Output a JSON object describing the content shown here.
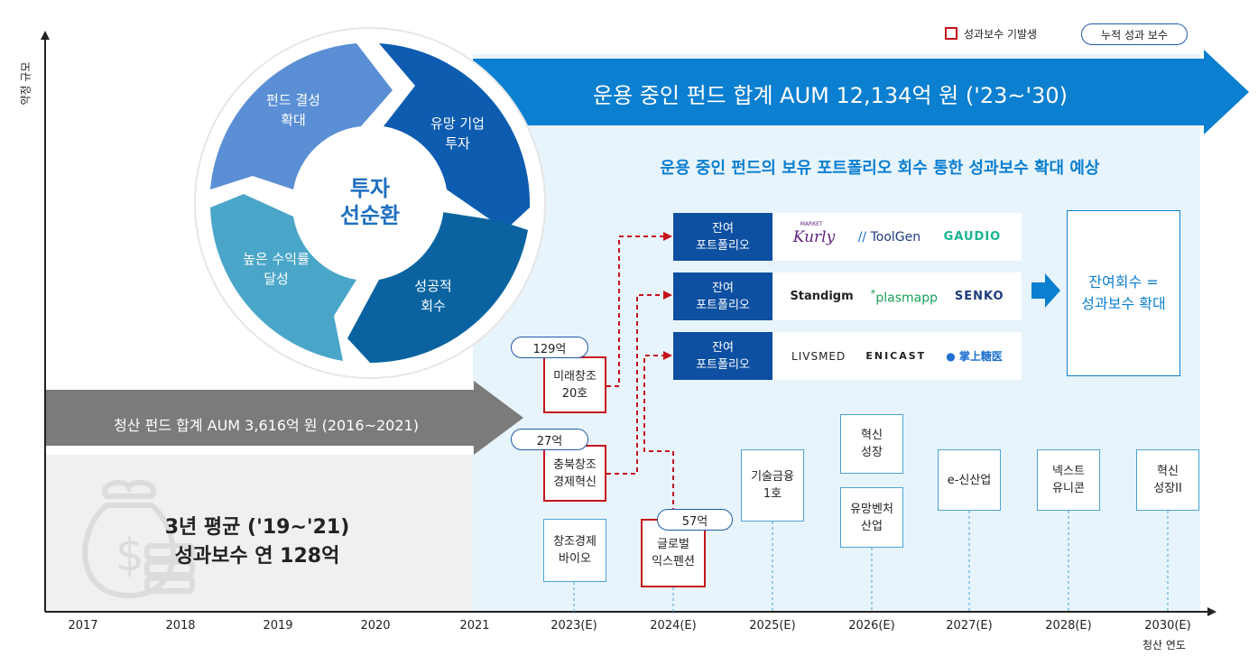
{
  "legend": {
    "bonus_label": "성과보수 기발생",
    "cumulative_label": "누적 성과 보수"
  },
  "y_axis_label": "약정 규모",
  "x_axis": {
    "ticks": [
      "2017",
      "2018",
      "2019",
      "2020",
      "2021",
      "2023(E)",
      "2024(E)",
      "2025(E)",
      "2026(E)",
      "2027(E)",
      "2028(E)",
      "2030(E)"
    ],
    "subtitle": "청산 연도"
  },
  "banner_top": "운용 중인 펀드 합계 AUM 12,134억 원 ('23~'30)",
  "banner_bottom": "청산 펀드 합계 AUM 3,616억 원 (2016~2021)",
  "subheading": "운용 중인 펀드의 보유 포트폴리오 회수 통한 성과보수 확대 예상",
  "average_text": {
    "line1": "3년 평균 ('19~'21)",
    "line2": "성과보수 연 128억"
  },
  "cycle": {
    "center": "투자\n선순환",
    "segments": [
      "펀드 결성\n확대",
      "유망 기업\n투자",
      "성공적\n회수",
      "높은 수익률\n달성"
    ]
  },
  "portfolio_rows": [
    {
      "tag": "잔여\n포트폴리오",
      "companies": [
        "Kurly",
        "ToolGen",
        "GAUDIO"
      ],
      "kurly_small": "MARKET"
    },
    {
      "tag": "잔여\n포트폴리오",
      "companies": [
        "Standigm",
        "plasmapp",
        "SENKO"
      ]
    },
    {
      "tag": "잔여\n포트폴리오",
      "companies": [
        "LIVSMED",
        "ENICAST",
        "掌上糖医"
      ]
    }
  ],
  "result_box": "잔여회수 =\n성과보수 확대",
  "funds": {
    "mirae": "미래창조\n20호",
    "chungbuk": "충북창조\n경제혁신",
    "bio": "창조경제\n바이오",
    "global": "글로벌\n익스펜션",
    "tech": "기술금융\n1호",
    "innov_growth": "혁신\n성장",
    "venture": "유망벤처\n산업",
    "e_new": "e-신산업",
    "next": "넥스트\n유니콘",
    "innov2": "혁신\n성장II"
  },
  "bonus_amounts": {
    "mirae": "129억",
    "chungbuk": "27억",
    "global": "57억"
  },
  "colors": {
    "dark_blue": "#0d4fa0",
    "light_blue_bg": "#e8f4fb",
    "gray_banner": "#7b7b7b",
    "red": "#c5141c"
  }
}
